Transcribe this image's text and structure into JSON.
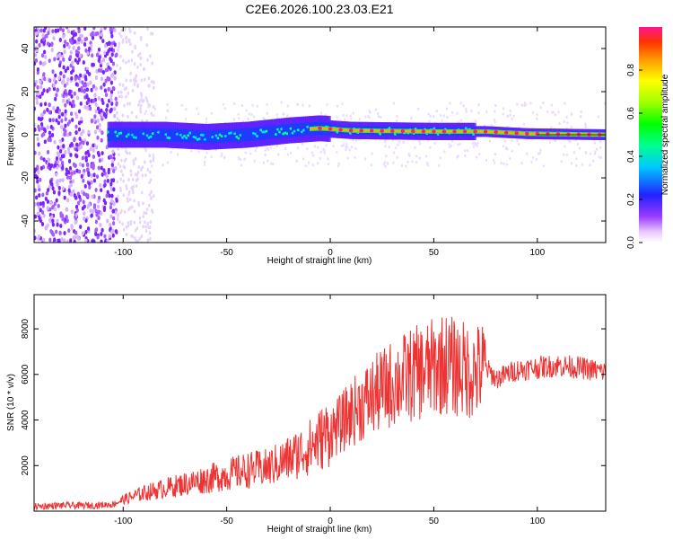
{
  "title": "C2E6.2026.100.23.03.E21",
  "chart_data": [
    {
      "type": "heatmap",
      "xlabel": "Height of straight line (km)",
      "ylabel": "Frequency (Hz)",
      "xlim": [
        -143,
        133
      ],
      "ylim": [
        -50,
        50
      ],
      "xticks": [
        -100,
        -50,
        0,
        50,
        100
      ],
      "yticks": [
        -40,
        -20,
        0,
        20,
        40
      ],
      "colorbar": {
        "label": "Normalized spectral amplitude",
        "range": [
          0,
          1
        ],
        "ticks": [
          "0.0",
          "0.2",
          "0.4",
          "0.6",
          "0.8"
        ],
        "tick_values": [
          0,
          0.2,
          0.4,
          0.6,
          0.8
        ]
      },
      "ridge": [
        [
          -107,
          0
        ],
        [
          -80,
          0
        ],
        [
          -60,
          -1
        ],
        [
          -40,
          0
        ],
        [
          -20,
          2
        ],
        [
          -5,
          3
        ],
        [
          10,
          2
        ],
        [
          50,
          1.5
        ],
        [
          75,
          1.5
        ],
        [
          95,
          0.5
        ],
        [
          133,
          0
        ]
      ]
    },
    {
      "type": "line",
      "xlabel": "Height of straight line (km)",
      "ylabel": "SNR (10 * v/v)",
      "xlim": [
        -143,
        133
      ],
      "ylim": [
        0,
        9500
      ],
      "xticks": [
        -100,
        -50,
        0,
        50,
        100
      ],
      "yticks": [
        2000,
        4000,
        6000,
        8000
      ],
      "color": "#ee3333",
      "series": [
        {
          "x": [
            -143,
            -130,
            -115,
            -105,
            -100,
            -90,
            -80,
            -70,
            -60,
            -50,
            -40,
            -30,
            -20,
            -10,
            0,
            5,
            10,
            20,
            30,
            40,
            50,
            55,
            60,
            70,
            75,
            80,
            90,
            100,
            110,
            120,
            133
          ],
          "y": [
            200,
            250,
            250,
            300,
            500,
            800,
            1000,
            1200,
            1400,
            1600,
            1800,
            1900,
            2300,
            2800,
            3500,
            3800,
            4300,
            5000,
            5600,
            6000,
            6300,
            6500,
            6300,
            6100,
            6300,
            5800,
            6200,
            6300,
            6400,
            6300,
            6100
          ]
        }
      ]
    }
  ]
}
